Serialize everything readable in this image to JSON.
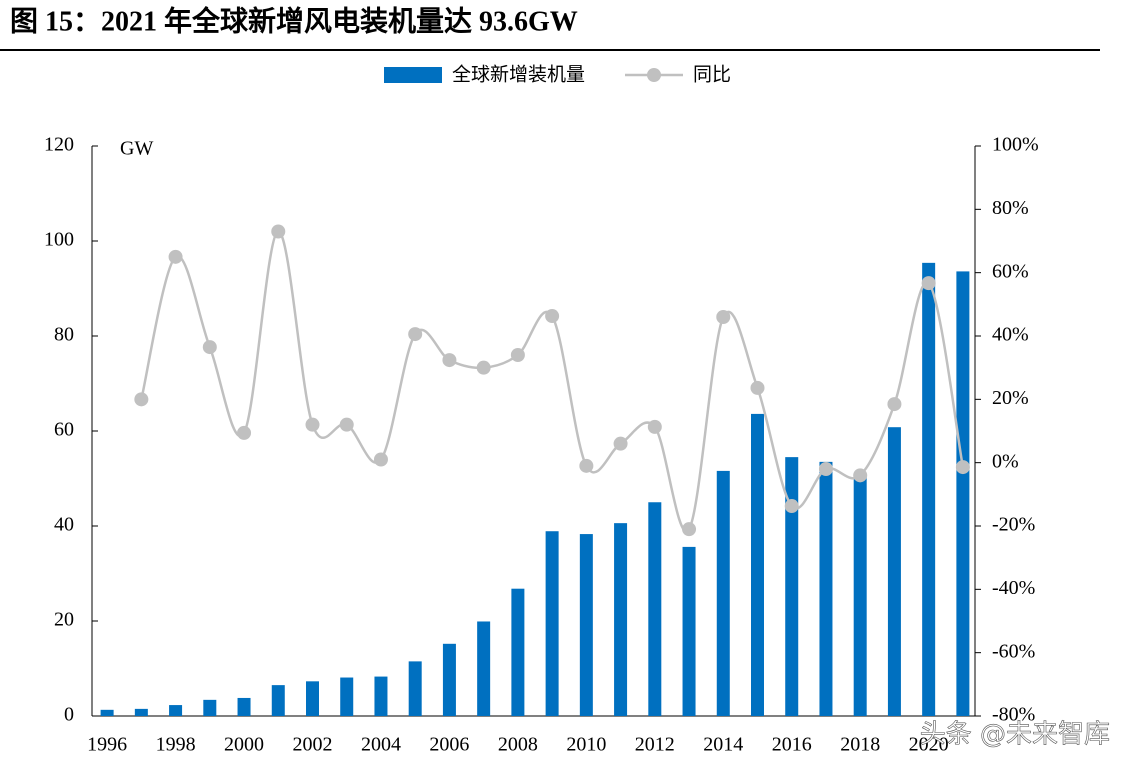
{
  "chart_data": {
    "type": "bar",
    "title": "图 15：2021 年全球新增风电装机量达 93.6GW",
    "y_unit": "GW",
    "categories": [
      "1996",
      null,
      "1998",
      null,
      "2000",
      null,
      "2002",
      null,
      "2004",
      null,
      "2006",
      null,
      "2008",
      null,
      "2010",
      null,
      "2012",
      null,
      "2014",
      null,
      "2016",
      null,
      "2018",
      null,
      "2020",
      null
    ],
    "series": [
      {
        "name": "全球新增装机量",
        "type": "bar",
        "color": "#0070c0",
        "values": [
          1.3,
          1.5,
          2.3,
          3.4,
          3.8,
          6.5,
          7.3,
          8.1,
          8.3,
          11.5,
          15.2,
          19.9,
          26.8,
          38.9,
          38.3,
          40.6,
          45.0,
          35.6,
          51.6,
          63.6,
          54.5,
          53.5,
          50.7,
          60.8,
          95.4,
          93.6
        ]
      },
      {
        "name": "同比",
        "type": "line",
        "axis": "y2",
        "color": "#c0c0c0",
        "values": [
          null,
          20,
          65,
          36.5,
          9.4,
          73,
          12,
          12,
          1,
          40.6,
          32.4,
          30,
          34,
          46.3,
          -1,
          6,
          11.3,
          -21,
          46,
          23.6,
          -13.7,
          -2,
          -4,
          18.5,
          56.7,
          -1.4
        ]
      }
    ],
    "ylim": [
      0,
      120
    ],
    "yticks": [
      0,
      20,
      40,
      60,
      80,
      100,
      120
    ],
    "y2lim": [
      -80,
      100
    ],
    "y2ticks": [
      {
        "value": -80,
        "label": "-80%"
      },
      {
        "value": -60,
        "label": "-60%"
      },
      {
        "value": -40,
        "label": "-40%"
      },
      {
        "value": -20,
        "label": "-20%"
      },
      {
        "value": 0,
        "label": "0%"
      },
      {
        "value": 20,
        "label": "20%"
      },
      {
        "value": 40,
        "label": "40%"
      },
      {
        "value": 60,
        "label": "60%"
      },
      {
        "value": 80,
        "label": "80%"
      },
      {
        "value": 100,
        "label": "100%"
      }
    ]
  },
  "watermark": "头条 @未来智库"
}
